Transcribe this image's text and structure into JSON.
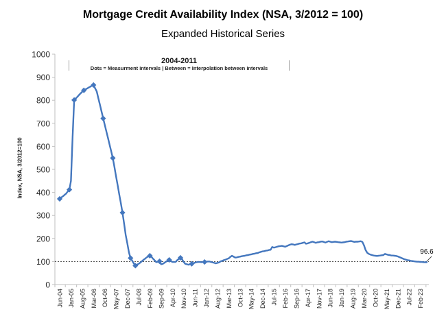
{
  "chart_data": {
    "type": "line",
    "title": "Mortgage Credit Availability Index (NSA, 3/2012 = 100)",
    "subtitle": "Expanded Historical Series",
    "ylabel": "Index, NSA, 3/2012=100",
    "ylim": [
      0,
      1000
    ],
    "y_tick_labels": [
      0,
      100,
      200,
      300,
      400,
      500,
      600,
      700,
      800,
      900,
      1000
    ],
    "reference_line": {
      "value": 100,
      "style": "dotted"
    },
    "annotation": {
      "period": "2004-2011",
      "legend": "Dots = Measurment intervals  |  Between = Interpolation between intervals"
    },
    "end_label": "96.6",
    "grid": false,
    "legend_position": "none",
    "x_tick_interval_months": 7,
    "x_tick_labels": [
      "Jun-04",
      "Jan-05",
      "Aug-05",
      "Mar-06",
      "Oct-06",
      "May-07",
      "Dec-07",
      "Jul-08",
      "Feb-09",
      "Sep-09",
      "Apr-10",
      "Nov-10",
      "Jun-11",
      "Jan-12",
      "Aug-12",
      "Mar-13",
      "Oct-13",
      "May-14",
      "Dec-14",
      "Jul-15",
      "Feb-16",
      "Sep-16",
      "Apr-17",
      "Nov-17",
      "Jun-18",
      "Jan-19",
      "Aug-19",
      "Mar-20",
      "Oct-20",
      "May-21",
      "Dec-21",
      "Jul-22",
      "Feb-23"
    ],
    "series": [
      {
        "name": "Mortgage Credit Availability Index, Expanded Historical Series",
        "color": "#4477be",
        "frequency": "monthly",
        "start_month": "Jun-04",
        "end_month": "Jun-23",
        "marker_months": [
          0,
          6,
          9,
          15,
          21,
          27,
          33,
          39,
          44,
          47,
          56,
          62,
          68,
          75,
          82,
          90
        ],
        "monthly_values": [
          372,
          378,
          383,
          389,
          395,
          404,
          412,
          450,
          640,
          801,
          808,
          815,
          823,
          830,
          837,
          843,
          847,
          851,
          855,
          859,
          863,
          866,
          852,
          838,
          809,
          780,
          751,
          721,
          693,
          665,
          636,
          607,
          578,
          549,
          510,
          470,
          431,
          391,
          352,
          312,
          264,
          215,
          178,
          140,
          115,
          104,
          92,
          82,
          86,
          90,
          95,
          101,
          107,
          112,
          118,
          122,
          125,
          120,
          112,
          105,
          97,
          99,
          101,
          88,
          90,
          94,
          99,
          103,
          107,
          102,
          98,
          98,
          98,
          106,
          111,
          116,
          110,
          98,
          90,
          88,
          86,
          88,
          90,
          93,
          95,
          97,
          98,
          98,
          97,
          98,
          98,
          99,
          100,
          100,
          98,
          96,
          94,
          92,
          94,
          96,
          101,
          103,
          106,
          108,
          111,
          114,
          120,
          125,
          121,
          117,
          118,
          120,
          121,
          123,
          124,
          125,
          127,
          128,
          130,
          131,
          133,
          134,
          136,
          137,
          140,
          142,
          144,
          145,
          147,
          148,
          150,
          151,
          163,
          160,
          162,
          164,
          166,
          167,
          168,
          166,
          164,
          167,
          170,
          173,
          175,
          174,
          172,
          174,
          176,
          178,
          179,
          181,
          183,
          177,
          179,
          181,
          184,
          186,
          184,
          181,
          183,
          184,
          186,
          187,
          185,
          182,
          185,
          188,
          186,
          184,
          185,
          186,
          185,
          184,
          183,
          182,
          183,
          184,
          186,
          187,
          188,
          189,
          187,
          185,
          186,
          186,
          187,
          188,
          185,
          170,
          150,
          138,
          133,
          130,
          128,
          126,
          125,
          124,
          125,
          126,
          127,
          128,
          133,
          131,
          129,
          128,
          126,
          126,
          125,
          124,
          122,
          119,
          116,
          113,
          110,
          108,
          106,
          105,
          103,
          102,
          101,
          100,
          99,
          99,
          98,
          98,
          97,
          96.8,
          96.6
        ]
      }
    ]
  }
}
